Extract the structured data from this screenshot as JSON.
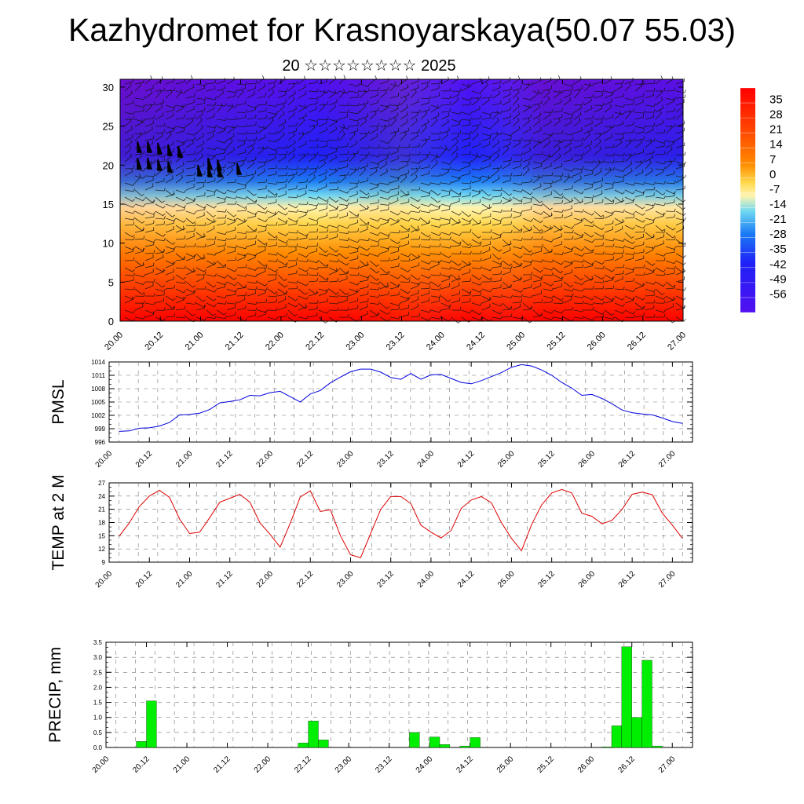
{
  "title": "Kazhydromet for Krasnoyarskaya(50.07 55.03)",
  "subtitle": "20 ☆☆☆☆☆☆☆☆ 2025",
  "chart_data": [
    {
      "type": "heatmap",
      "title": "",
      "xlabel": "",
      "ylabel": "",
      "x_ticks": [
        "20.00",
        "20.12",
        "21.00",
        "21.12",
        "22.00",
        "22.12",
        "23.00",
        "23.12",
        "24.00",
        "24.12",
        "25.00",
        "25.12",
        "26.00",
        "26.12",
        "27.00"
      ],
      "y_ticks": [
        0,
        5,
        10,
        15,
        20,
        25,
        30
      ],
      "ylim": [
        0,
        31
      ],
      "overlay": "wind barbs",
      "colorbar": {
        "labels": [
          "35",
          "28",
          "21",
          "14",
          "7",
          "0",
          "-7",
          "-14",
          "-21",
          "-28",
          "-35",
          "-42",
          "-49",
          "-56"
        ],
        "colors": [
          "#ff0000",
          "#ff4a00",
          "#ff8c00",
          "#ffd84a",
          "#fff5b0",
          "#6ed8f2",
          "#1a7af5",
          "#1f21f7",
          "#5210f0"
        ]
      }
    },
    {
      "type": "line",
      "ylabel": "PMSL",
      "ylim": [
        996,
        1014
      ],
      "y_ticks": [
        996,
        999,
        1002,
        1005,
        1008,
        1011,
        1014
      ],
      "categories": [
        "20.00",
        "20.12",
        "21.00",
        "21.12",
        "22.00",
        "22.12",
        "23.00",
        "23.12",
        "24.00",
        "24.12",
        "25.00",
        "25.12",
        "26.00",
        "26.12",
        "27.00"
      ],
      "color": "#0000dd",
      "series": [
        {
          "x": [
            0,
            0.25,
            0.5,
            0.75,
            1,
            1.25,
            1.5,
            1.75,
            2,
            2.25,
            2.5,
            2.75,
            3,
            3.25,
            3.5,
            3.75,
            4,
            4.25,
            4.5,
            4.75,
            5,
            5.25,
            5.5,
            5.75,
            6,
            6.25,
            6.5,
            6.75,
            7,
            7.25,
            7.5,
            7.75,
            8,
            8.25,
            8.5,
            8.75,
            9,
            9.25,
            9.5,
            9.75,
            10,
            10.25,
            10.5,
            10.75,
            11,
            11.25,
            11.5,
            11.75,
            12,
            12.25,
            12.5,
            12.75,
            13,
            13.25,
            13.5,
            13.75,
            14
          ],
          "values": [
            998.4,
            998.5,
            999.1,
            999.2,
            999.6,
            1000.4,
            1002.1,
            1002.2,
            1002.5,
            1003.3,
            1004.8,
            1005.1,
            1005.5,
            1006.5,
            1006.4,
            1007.1,
            1007.4,
            1006.2,
            1005,
            1006.8,
            1007.6,
            1009.3,
            1010.6,
            1011.8,
            1012.4,
            1012.4,
            1011.7,
            1010.5,
            1010.1,
            1011.4,
            1010.1,
            1011.1,
            1011.2,
            1010.3,
            1009.4,
            1009.1,
            1009.8,
            1010.7,
            1011.6,
            1012.8,
            1013.4,
            1013.1,
            1012.2,
            1011,
            1009.4,
            1008.1,
            1006.5,
            1006.7,
            1005.8,
            1004.6,
            1003.2,
            1002.6,
            1002.3,
            1002.1,
            1001.4,
            1000.6,
            1000.2
          ]
        }
      ]
    },
    {
      "type": "line",
      "ylabel": "TEMP at 2 M",
      "ylim": [
        9,
        27
      ],
      "y_ticks": [
        9,
        12,
        15,
        18,
        21,
        24,
        27
      ],
      "categories": [
        "20.00",
        "20.12",
        "21.00",
        "21.12",
        "22.00",
        "22.12",
        "23.00",
        "23.12",
        "24.00",
        "24.12",
        "25.00",
        "25.12",
        "26.00",
        "26.12",
        "27.00"
      ],
      "color": "#dd0000",
      "series": [
        {
          "x": [
            0,
            0.25,
            0.5,
            0.75,
            1,
            1.25,
            1.5,
            1.75,
            2,
            2.25,
            2.5,
            2.75,
            3,
            3.25,
            3.5,
            3.75,
            4,
            4.25,
            4.5,
            4.75,
            5,
            5.25,
            5.5,
            5.75,
            6,
            6.25,
            6.5,
            6.75,
            7,
            7.25,
            7.5,
            7.75,
            8,
            8.25,
            8.5,
            8.75,
            9,
            9.25,
            9.5,
            9.75,
            10,
            10.25,
            10.5,
            10.75,
            11,
            11.25,
            11.5,
            11.75,
            12,
            12.25,
            12.5,
            12.75,
            13,
            13.25,
            13.5,
            13.75,
            14
          ],
          "values": [
            14.9,
            17.9,
            21.6,
            24,
            25.3,
            23.7,
            18.8,
            15.5,
            15.8,
            19.1,
            22.6,
            23.5,
            24.4,
            22.6,
            17.9,
            15.3,
            12.4,
            17.8,
            23.8,
            25.2,
            20.5,
            20.9,
            15,
            10.7,
            10,
            15.5,
            21,
            23.9,
            23.9,
            22.3,
            17.4,
            15.8,
            14.5,
            16.2,
            21.2,
            23.1,
            23.9,
            22.5,
            18,
            14.4,
            11.6,
            17.5,
            22,
            24.7,
            25.5,
            24.7,
            20.1,
            19.4,
            17.7,
            18.5,
            21,
            24.4,
            24.9,
            24.3,
            20.1,
            17.4,
            14.4
          ]
        }
      ]
    },
    {
      "type": "bar",
      "ylabel": "PRECIP, mm",
      "ylim": [
        0,
        3.5
      ],
      "y_ticks": [
        "0.0",
        "0.5",
        "1.0",
        "1.5",
        "2.0",
        "2.5",
        "3.0",
        "3.5"
      ],
      "categories": [
        "20.00",
        "20.12",
        "21.00",
        "21.12",
        "22.00",
        "22.12",
        "23.00",
        "23.12",
        "24.00",
        "24.12",
        "25.00",
        "25.12",
        "26.00",
        "26.12",
        "27.00"
      ],
      "color": "#00ee00",
      "bars": [
        {
          "x": 0.625,
          "value": 0.2
        },
        {
          "x": 0.875,
          "value": 1.55
        },
        {
          "x": 4.625,
          "value": 0.15
        },
        {
          "x": 4.875,
          "value": 0.88
        },
        {
          "x": 5.125,
          "value": 0.25
        },
        {
          "x": 7.375,
          "value": 0.5
        },
        {
          "x": 7.875,
          "value": 0.35
        },
        {
          "x": 8.125,
          "value": 0.1
        },
        {
          "x": 8.625,
          "value": 0.05
        },
        {
          "x": 8.875,
          "value": 0.33
        },
        {
          "x": 12.125,
          "value": 0.02
        },
        {
          "x": 12.375,
          "value": 0.72
        },
        {
          "x": 12.625,
          "value": 3.35
        },
        {
          "x": 12.875,
          "value": 1.0
        },
        {
          "x": 13.125,
          "value": 2.9
        },
        {
          "x": 13.375,
          "value": 0.05
        }
      ]
    }
  ]
}
